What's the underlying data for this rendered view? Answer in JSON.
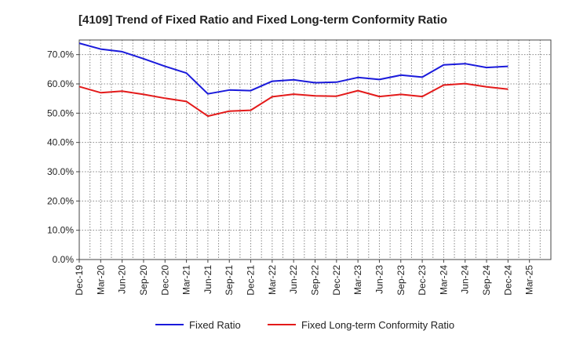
{
  "chart_data": {
    "type": "line",
    "title": "[4109]  Trend of Fixed Ratio and Fixed Long-term Conformity Ratio",
    "xlabel": "",
    "ylabel": "",
    "ylim": [
      0,
      75
    ],
    "yticks": [
      0,
      10,
      20,
      30,
      40,
      50,
      60,
      70
    ],
    "y_tick_labels": [
      "0.0%",
      "10.0%",
      "20.0%",
      "30.0%",
      "40.0%",
      "50.0%",
      "60.0%",
      "70.0%"
    ],
    "x_tick_labels": [
      "Dec-19",
      "Mar-20",
      "Jun-20",
      "Sep-20",
      "Dec-20",
      "Mar-21",
      "Jun-21",
      "Sep-21",
      "Dec-21",
      "Mar-22",
      "Jun-22",
      "Sep-22",
      "Dec-22",
      "Mar-23",
      "Jun-23",
      "Sep-23",
      "Dec-23",
      "Mar-24",
      "Jun-24",
      "Sep-24",
      "Dec-24",
      "Mar-25"
    ],
    "x": [
      "Dec-19",
      "Mar-20",
      "Jun-20",
      "Sep-20",
      "Dec-20",
      "Mar-21",
      "Jun-21",
      "Sep-21",
      "Dec-21",
      "Mar-22",
      "Jun-22",
      "Sep-22",
      "Dec-22",
      "Mar-23",
      "Jun-23",
      "Sep-23",
      "Dec-23",
      "Mar-24",
      "Jun-24",
      "Sep-24",
      "Dec-24"
    ],
    "grid": true,
    "legend_position": "bottom",
    "series": [
      {
        "name": "Fixed Ratio",
        "color": "#1a1adb",
        "values": [
          73.9,
          71.9,
          71.0,
          68.6,
          66.0,
          63.7,
          56.6,
          57.9,
          57.7,
          60.9,
          61.4,
          60.4,
          60.6,
          62.2,
          61.5,
          63.0,
          62.3,
          66.5,
          66.9,
          65.6,
          66.0
        ]
      },
      {
        "name": "Fixed Long-term Conformity Ratio",
        "color": "#e31a1a",
        "values": [
          59.1,
          57.0,
          57.5,
          56.4,
          55.1,
          54.0,
          49.0,
          50.7,
          51.0,
          55.6,
          56.5,
          55.9,
          55.8,
          57.7,
          55.7,
          56.4,
          55.7,
          59.6,
          60.1,
          59.0,
          58.2
        ]
      }
    ]
  }
}
